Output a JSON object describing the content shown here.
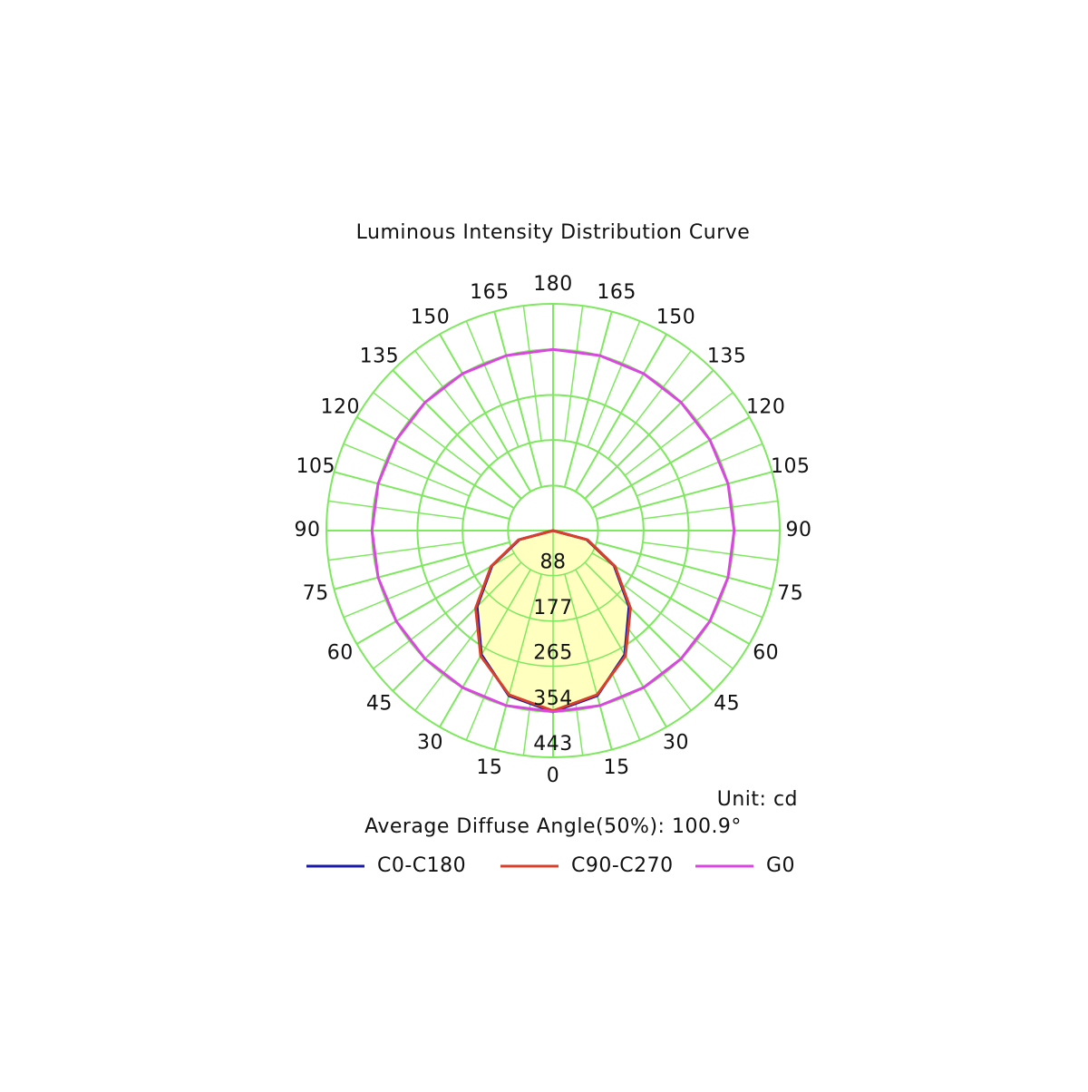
{
  "chart_data": {
    "type": "polar",
    "title": "Luminous Intensity Distribution Curve",
    "unit_label": "Unit: cd",
    "note": "Average Diffuse Angle(50%): 100.9°",
    "rlim": [
      0,
      443
    ],
    "rticks": [
      88,
      177,
      265,
      354,
      443
    ],
    "angle_ticks": [
      0,
      15,
      30,
      45,
      60,
      75,
      90,
      105,
      120,
      135,
      150,
      165,
      180
    ],
    "grid_color": "#7ee85f",
    "fill": "#ffffc0",
    "series": [
      {
        "name": "C0-C180",
        "color": "#1a1aa8",
        "angles": [
          -90,
          -75,
          -60,
          -45,
          -30,
          -15,
          0,
          15,
          30,
          45,
          60,
          75,
          90
        ],
        "values": [
          0,
          68,
          138,
          210,
          280,
          334,
          354,
          334,
          280,
          210,
          138,
          68,
          0
        ]
      },
      {
        "name": "C90-C270",
        "color": "#d8402c",
        "angles": [
          -90,
          -75,
          -60,
          -45,
          -30,
          -15,
          0,
          15,
          30,
          45,
          60,
          75,
          90
        ],
        "values": [
          0,
          70,
          140,
          214,
          283,
          332,
          352,
          332,
          283,
          214,
          140,
          70,
          0
        ]
      },
      {
        "name": "G0",
        "color": "#d946e0",
        "angles": [
          0,
          15,
          30,
          45,
          60,
          75,
          90,
          105,
          120,
          135,
          150,
          165,
          180,
          195,
          210,
          225,
          240,
          255,
          270,
          285,
          300,
          315,
          330,
          345,
          360
        ],
        "values": [
          354,
          354,
          354,
          354,
          354,
          354,
          354,
          354,
          354,
          354,
          354,
          354,
          354,
          354,
          354,
          354,
          354,
          354,
          354,
          354,
          354,
          354,
          354,
          354,
          354
        ]
      }
    ]
  }
}
